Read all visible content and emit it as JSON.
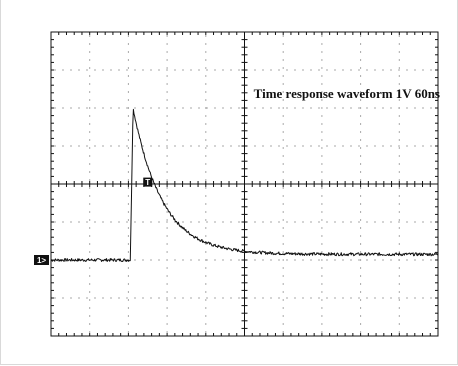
{
  "colors": {
    "background": "#ffffff",
    "grid": "#111111",
    "trace": "#111111",
    "marker_fill": "#111111",
    "marker_text": "#ffffff"
  },
  "chart_data": {
    "type": "line",
    "title": "",
    "annotation": "Time response waveform 1V 60ns",
    "xlabel": "",
    "ylabel": "",
    "divisions": {
      "x": 10,
      "y": 8
    },
    "xlim": [
      0,
      10
    ],
    "ylim": [
      -4,
      4
    ],
    "grid": true,
    "units": "divisions",
    "markers": {
      "channel": {
        "label": "1>",
        "level": -2.0
      },
      "trigger": {
        "label": "T",
        "time": 2.5,
        "level": 0.05
      }
    },
    "series": [
      {
        "name": "",
        "baseline_level": -2.0,
        "rise_time": 2.05,
        "peak_time": 2.12,
        "peak_level": 2.0,
        "decay_tau": 0.75,
        "settle_level": -1.85,
        "noise_amplitude": 0.04,
        "points": [
          [
            0.0,
            -2.0
          ],
          [
            1.0,
            -2.0
          ],
          [
            2.0,
            -2.0
          ],
          [
            2.05,
            -2.0
          ],
          [
            2.12,
            2.0
          ],
          [
            2.3,
            1.1
          ],
          [
            2.5,
            0.3
          ],
          [
            2.8,
            -0.45
          ],
          [
            3.2,
            -1.0
          ],
          [
            3.6,
            -1.3
          ],
          [
            4.0,
            -1.55
          ],
          [
            4.5,
            -1.7
          ],
          [
            5.0,
            -1.8
          ],
          [
            6.0,
            -1.85
          ],
          [
            7.0,
            -1.85
          ],
          [
            8.0,
            -1.86
          ],
          [
            9.0,
            -1.86
          ],
          [
            10.0,
            -1.86
          ]
        ]
      }
    ]
  }
}
